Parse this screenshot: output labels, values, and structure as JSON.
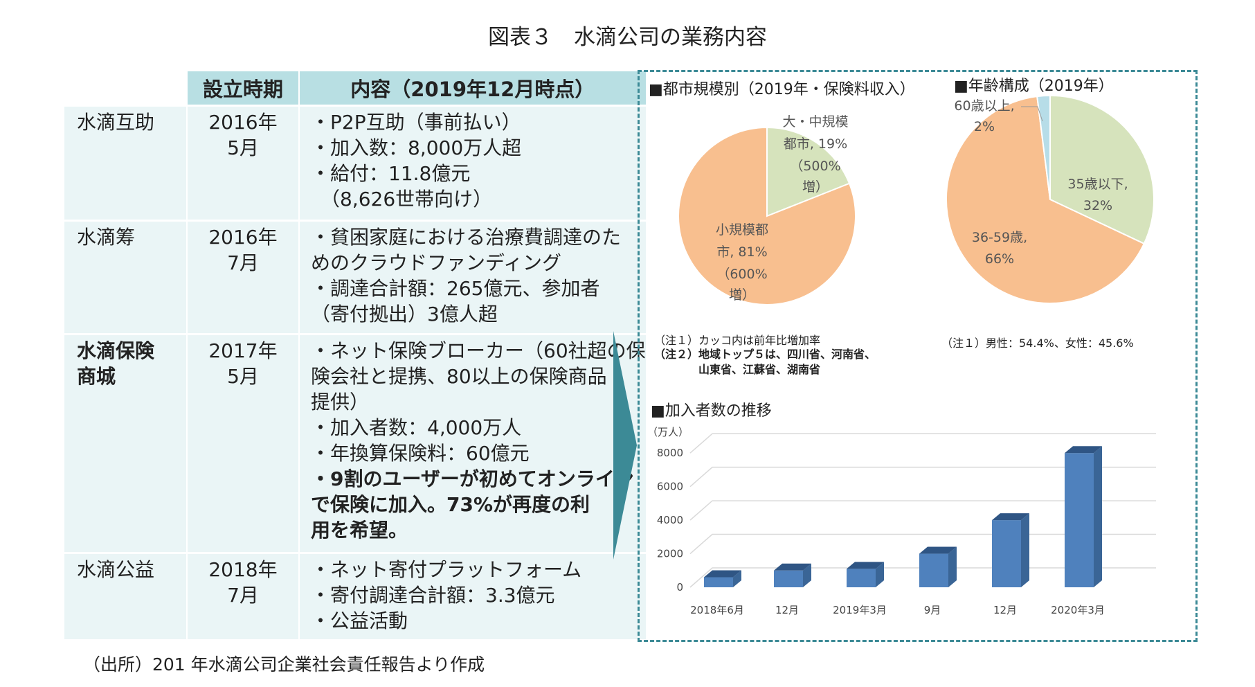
{
  "title": "図表３　水滴公司の業務内容",
  "table": {
    "headers": [
      "",
      "設立時期",
      "内容（2019年12月時点）"
    ],
    "rows": [
      {
        "name": [
          "水滴互助"
        ],
        "name_bold": false,
        "date": [
          "2016年",
          "5月"
        ],
        "content": [
          {
            "text": "・P2P互助（事前払い）",
            "bold": false
          },
          {
            "text": "・加入数：8,000万人超",
            "bold": false
          },
          {
            "text": "・給付：11.8億元",
            "bold": false
          },
          {
            "text": "　（8,626世帯向け）",
            "bold": false
          }
        ]
      },
      {
        "name": [
          "水滴筹"
        ],
        "name_bold": false,
        "date": [
          "2016年",
          "7月"
        ],
        "content": [
          {
            "text": "・貧困家庭における治療費調達のた",
            "bold": false
          },
          {
            "text": "めのクラウドファンディング",
            "bold": false
          },
          {
            "text": "・調達合計額：265億元、参加者",
            "bold": false
          },
          {
            "text": "（寄付拠出）3億人超",
            "bold": false
          }
        ]
      },
      {
        "name": [
          "水滴保険",
          "商城"
        ],
        "name_bold": true,
        "date": [
          "2017年",
          "5月"
        ],
        "content": [
          {
            "text": "・ネット保険ブローカー（60社超の保",
            "bold": false
          },
          {
            "text": "険会社と提携、80以上の保険商品",
            "bold": false
          },
          {
            "text": "提供）",
            "bold": false
          },
          {
            "text": "・加入者数：4,000万人",
            "bold": false
          },
          {
            "text": "・年換算保険料：60億元",
            "bold": false
          },
          {
            "text": "・9割のユーザーが初めてオンライン",
            "bold": true
          },
          {
            "text": "で保険に加入。73%が再度の利",
            "bold": true
          },
          {
            "text": "用を希望。",
            "bold": true
          }
        ]
      },
      {
        "name": [
          "水滴公益"
        ],
        "name_bold": false,
        "date": [
          "2018年",
          "7月"
        ],
        "content": [
          {
            "text": "・ネット寄付プラットフォーム",
            "bold": false
          },
          {
            "text": "・寄付調達合計額：3.3億元",
            "bold": false
          },
          {
            "text": "・公益活動",
            "bold": false
          }
        ]
      }
    ]
  },
  "source": "（出所）201 年水滴公司企業社会責任報告より作成",
  "chart_data": [
    {
      "type": "pie",
      "title": "■都市規模別（2019年・保険料収入）",
      "slices": [
        {
          "label": [
            "大・中規模",
            "都市, 19%",
            "（500%",
            "増）"
          ],
          "value": 19,
          "color": "#d6e3bc"
        },
        {
          "label": [
            "小規模都",
            "市, 81%",
            "（600%",
            "増）"
          ],
          "value": 81,
          "color": "#f8bf8f"
        }
      ],
      "notes": [
        {
          "text": "（注１）カッコ内は前年比増加率",
          "bold": false
        },
        {
          "text": "（注２）地域トップ５は、四川省、河南省、",
          "bold": true
        },
        {
          "text": "　　　　山東省、江蘇省、湖南省",
          "bold": true
        }
      ]
    },
    {
      "type": "pie",
      "title": "■年齢構成（2019年）",
      "slices": [
        {
          "label": [
            "35歳以下,",
            "32%"
          ],
          "value": 32,
          "color": "#d6e3bc"
        },
        {
          "label": [
            "36-59歳,",
            "66%"
          ],
          "value": 66,
          "color": "#f8bf8f"
        },
        {
          "label": [
            "60歳以上,",
            "2%"
          ],
          "value": 2,
          "color": "#b7dde8"
        }
      ],
      "notes": [
        {
          "text": "（注１）男性：54.4%、女性：45.6%",
          "bold": false
        }
      ]
    },
    {
      "type": "bar",
      "title": "■加入者数の推移",
      "unit": "（万人）",
      "categories": [
        "2018年6月",
        "12月",
        "2019年3月",
        "9月",
        "12月",
        "2020年3月"
      ],
      "values": [
        600,
        1000,
        1100,
        2000,
        4000,
        8000
      ],
      "yticks": [
        0,
        2000,
        4000,
        6000,
        8000
      ],
      "ylim": [
        0,
        9000
      ],
      "color": "#4f81bd"
    }
  ]
}
